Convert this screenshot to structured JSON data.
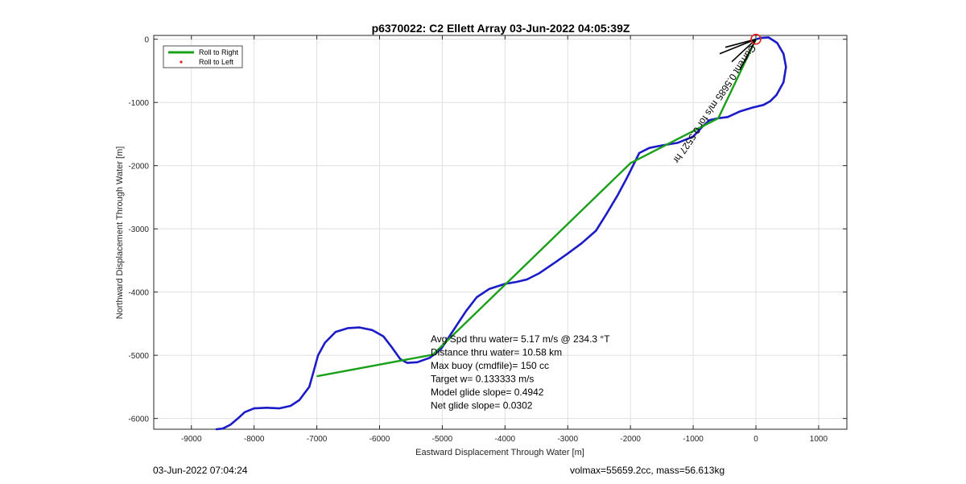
{
  "footer": {
    "left": "03-Jun-2022 07:04:24",
    "right": "volmax=55659.2cc, mass=56.613kg"
  },
  "chart_data": {
    "type": "line",
    "title": "p6370022: C2 Ellett Array 03-Jun-2022 04:05:39Z",
    "xlabel": "Eastward Displacement Through Water [m]",
    "ylabel": "Northward Displacement Through Water [m]",
    "xlim": [
      -9600,
      1450
    ],
    "ylim": [
      -6170,
      60
    ],
    "xticks": [
      -9000,
      -8000,
      -7000,
      -6000,
      -5000,
      -4000,
      -3000,
      -2000,
      -1000,
      0,
      1000
    ],
    "yticks": [
      0,
      -1000,
      -2000,
      -3000,
      -4000,
      -5000,
      -6000
    ],
    "xtick_labels": [
      "-9000",
      "-8000",
      "-7000",
      "-6000",
      "-5000",
      "-4000",
      "-3000",
      "-2000",
      "-1000",
      "0",
      "1000"
    ],
    "ytick_labels": [
      "0",
      "-1000",
      "-2000",
      "-3000",
      "-4000",
      "-5000",
      "-6000"
    ],
    "grid": true,
    "legend_position": "top-left",
    "legend": [
      {
        "label": "Roll to Right",
        "color": "#1aa01a",
        "marker": "line"
      },
      {
        "label": "Roll to Left",
        "color": "#e02020",
        "marker": "dot"
      }
    ],
    "series": [
      {
        "color": "#1b1bc8",
        "points": [
          [
            -8600,
            -6170
          ],
          [
            -8500,
            -6160
          ],
          [
            -8380,
            -6100
          ],
          [
            -8270,
            -6010
          ],
          [
            -8150,
            -5900
          ],
          [
            -8000,
            -5840
          ],
          [
            -7800,
            -5830
          ],
          [
            -7600,
            -5840
          ],
          [
            -7420,
            -5800
          ],
          [
            -7280,
            -5710
          ],
          [
            -7120,
            -5500
          ],
          [
            -7050,
            -5250
          ],
          [
            -6980,
            -5000
          ],
          [
            -6870,
            -4800
          ],
          [
            -6700,
            -4630
          ],
          [
            -6500,
            -4570
          ],
          [
            -6320,
            -4560
          ],
          [
            -6120,
            -4600
          ],
          [
            -5940,
            -4700
          ],
          [
            -5800,
            -4880
          ],
          [
            -5670,
            -5060
          ],
          [
            -5560,
            -5120
          ],
          [
            -5400,
            -5110
          ],
          [
            -5200,
            -5040
          ],
          [
            -5020,
            -4900
          ],
          [
            -4840,
            -4630
          ],
          [
            -4620,
            -4300
          ],
          [
            -4450,
            -4080
          ],
          [
            -4250,
            -3950
          ],
          [
            -4000,
            -3870
          ],
          [
            -3820,
            -3840
          ],
          [
            -3650,
            -3800
          ],
          [
            -3450,
            -3700
          ],
          [
            -3200,
            -3530
          ],
          [
            -3000,
            -3390
          ],
          [
            -2780,
            -3230
          ],
          [
            -2550,
            -3030
          ],
          [
            -2380,
            -2760
          ],
          [
            -2200,
            -2460
          ],
          [
            -2060,
            -2200
          ],
          [
            -1940,
            -1960
          ],
          [
            -1860,
            -1800
          ],
          [
            -1700,
            -1720
          ],
          [
            -1500,
            -1680
          ],
          [
            -1250,
            -1640
          ],
          [
            -1000,
            -1540
          ],
          [
            -850,
            -1380
          ],
          [
            -740,
            -1280
          ],
          [
            -600,
            -1250
          ],
          [
            -450,
            -1230
          ],
          [
            -250,
            -1140
          ],
          [
            -50,
            -1080
          ],
          [
            120,
            -1040
          ],
          [
            230,
            -980
          ],
          [
            330,
            -880
          ],
          [
            440,
            -680
          ],
          [
            480,
            -440
          ],
          [
            440,
            -230
          ],
          [
            340,
            -60
          ],
          [
            200,
            30
          ],
          [
            80,
            20
          ],
          [
            0,
            0
          ]
        ]
      },
      {
        "color": "#1aa01a",
        "points": [
          [
            -6990,
            -5330
          ],
          [
            -5150,
            -4990
          ],
          [
            -2000,
            -1960
          ],
          [
            -600,
            -1250
          ],
          [
            0,
            0
          ]
        ]
      }
    ],
    "marker": {
      "x": 0,
      "y": 0,
      "color": "#e02020"
    },
    "rotated_label": "Current  0.5685 m/s for 0.5527 hr",
    "annotations": [
      "Avg Spd thru water=  5.17 m/s @ 234.3 °T",
      "Distance thru water= 10.58 km",
      "Max buoy (cmdfile)= 150 cc",
      "Target w= 0.133333 m/s",
      "Model glide slope= 0.4942",
      "Net glide slope= 0.0302"
    ]
  }
}
